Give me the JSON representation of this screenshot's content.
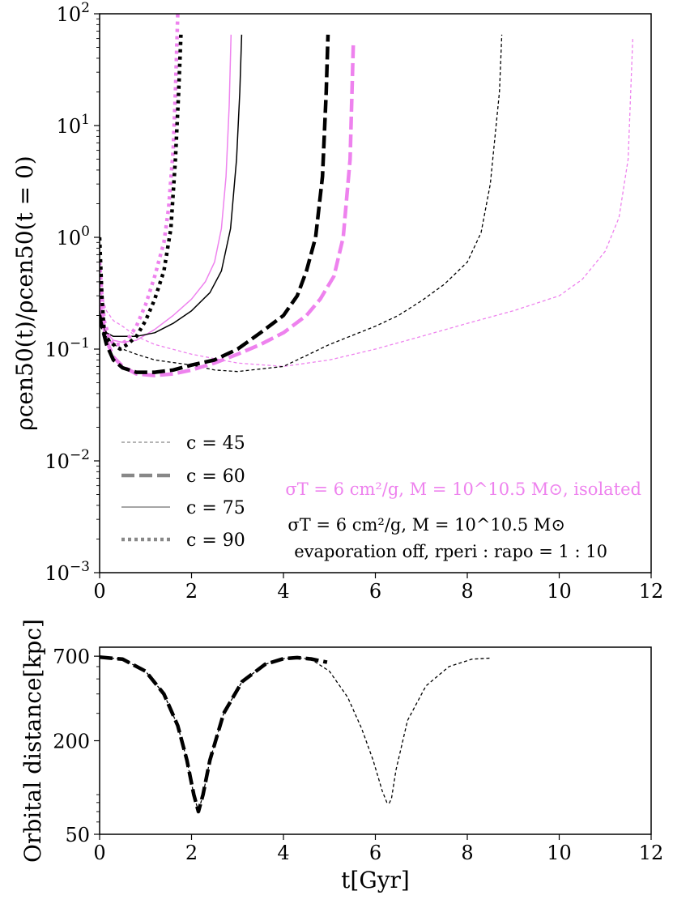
{
  "chart_data": [
    {
      "type": "line",
      "panel": "top",
      "xlabel": "",
      "ylabel": "ρcen50(t)/ρcen50(t = 0)",
      "yscale": "log",
      "xlim": [
        0,
        12
      ],
      "ylim": [
        0.001,
        100
      ],
      "x_ticks": [
        0,
        2,
        4,
        6,
        8,
        10,
        12
      ],
      "x_tick_labels": [
        "0",
        "2",
        "4",
        "6",
        "8",
        "10",
        "12"
      ],
      "y_ticks": [
        0.001,
        0.01,
        0.1,
        1,
        10,
        100
      ],
      "y_tick_labels": [
        {
          "base": "10",
          "exp": "−3"
        },
        {
          "base": "10",
          "exp": "−2"
        },
        {
          "base": "10",
          "exp": "−1"
        },
        {
          "base": "10",
          "exp": "0"
        },
        {
          "base": "10",
          "exp": "1"
        },
        {
          "base": "10",
          "exp": "2"
        }
      ],
      "legend": {
        "placement": "lower-left",
        "entries": [
          {
            "label": "c = 45",
            "style": "thin-dashed"
          },
          {
            "label": "c = 60",
            "style": "thick-dashed"
          },
          {
            "label": "c = 75",
            "style": "solid"
          },
          {
            "label": "c = 90",
            "style": "dotted"
          }
        ]
      },
      "annotations": [
        {
          "text": "σT = 6 cm²/g, M = 10^10.5 M⊙, isolated",
          "color": "#ee82ee"
        },
        {
          "text": "σT = 6 cm²/g, M = 10^10.5 M⊙",
          "color": "#000000"
        },
        {
          "text": "evaporation off, rperi : rapo = 1 : 10",
          "color": "#000000"
        }
      ],
      "series": [
        {
          "name": "c = 45, isolated",
          "color": "#ee82ee",
          "style": "thin-dashed",
          "x": [
            0,
            0.05,
            0.15,
            0.3,
            0.5,
            0.8,
            1.2,
            2,
            3,
            4,
            5,
            6,
            7,
            8,
            9,
            10,
            10.5,
            11,
            11.3,
            11.5,
            11.6
          ],
          "y": [
            0.35,
            0.3,
            0.22,
            0.18,
            0.16,
            0.13,
            0.11,
            0.09,
            0.075,
            0.07,
            0.08,
            0.1,
            0.13,
            0.17,
            0.22,
            0.3,
            0.42,
            0.75,
            1.5,
            5,
            60
          ]
        },
        {
          "name": "c = 45",
          "color": "#000000",
          "style": "thin-dashed",
          "x": [
            0,
            0.05,
            0.15,
            0.3,
            0.5,
            0.8,
            1.2,
            2,
            2.5,
            3,
            4,
            5,
            6,
            6.5,
            7,
            7.5,
            8,
            8.3,
            8.5,
            8.7,
            8.75
          ],
          "y": [
            0.18,
            0.15,
            0.13,
            0.11,
            0.1,
            0.09,
            0.08,
            0.072,
            0.065,
            0.063,
            0.07,
            0.11,
            0.16,
            0.2,
            0.27,
            0.38,
            0.6,
            1.1,
            3,
            20,
            65
          ]
        },
        {
          "name": "c = 60, isolated",
          "color": "#ee82ee",
          "style": "thick-dashed",
          "x": [
            0,
            0.05,
            0.15,
            0.3,
            0.5,
            0.8,
            1.2,
            1.6,
            2,
            2.5,
            3,
            3.5,
            4,
            4.5,
            4.8,
            5.1,
            5.3,
            5.45,
            5.52
          ],
          "y": [
            0.25,
            0.2,
            0.12,
            0.085,
            0.07,
            0.06,
            0.058,
            0.06,
            0.065,
            0.075,
            0.09,
            0.11,
            0.14,
            0.2,
            0.28,
            0.45,
            1.0,
            5,
            55
          ]
        },
        {
          "name": "c = 60",
          "color": "#000000",
          "style": "thick-dashed",
          "x": [
            0,
            0.05,
            0.15,
            0.3,
            0.5,
            0.8,
            1.2,
            1.6,
            2,
            2.5,
            3,
            3.5,
            4,
            4.3,
            4.5,
            4.7,
            4.85,
            4.93,
            4.97
          ],
          "y": [
            0.2,
            0.16,
            0.11,
            0.08,
            0.068,
            0.062,
            0.062,
            0.065,
            0.072,
            0.08,
            0.1,
            0.14,
            0.2,
            0.3,
            0.5,
            1.0,
            3.5,
            20,
            65
          ]
        },
        {
          "name": "c = 75, isolated",
          "color": "#ee82ee",
          "style": "solid",
          "x": [
            0,
            0.05,
            0.15,
            0.3,
            0.5,
            0.8,
            1.2,
            1.6,
            2,
            2.3,
            2.5,
            2.65,
            2.75,
            2.82,
            2.86
          ],
          "y": [
            0.3,
            0.22,
            0.14,
            0.12,
            0.115,
            0.12,
            0.15,
            0.2,
            0.28,
            0.4,
            0.6,
            1.2,
            3.5,
            15,
            65
          ]
        },
        {
          "name": "c = 75",
          "color": "#000000",
          "style": "solid",
          "x": [
            0,
            0.05,
            0.15,
            0.3,
            0.5,
            0.8,
            1.2,
            1.6,
            2,
            2.4,
            2.65,
            2.85,
            2.98,
            3.05,
            3.09
          ],
          "y": [
            0.22,
            0.17,
            0.14,
            0.13,
            0.13,
            0.13,
            0.14,
            0.17,
            0.22,
            0.32,
            0.5,
            1.2,
            5,
            20,
            65
          ]
        },
        {
          "name": "c = 90, isolated",
          "color": "#ee82ee",
          "style": "dotted",
          "x": [
            0,
            0.05,
            0.1,
            0.2,
            0.3,
            0.45,
            0.6,
            0.8,
            1.0,
            1.2,
            1.4,
            1.5,
            1.6,
            1.65,
            1.7
          ],
          "y": [
            0.6,
            0.3,
            0.18,
            0.13,
            0.11,
            0.11,
            0.12,
            0.16,
            0.25,
            0.45,
            0.9,
            1.8,
            6,
            20,
            100
          ]
        },
        {
          "name": "c = 90",
          "color": "#000000",
          "style": "dotted",
          "x": [
            0,
            0.05,
            0.1,
            0.2,
            0.3,
            0.45,
            0.6,
            0.8,
            1.0,
            1.2,
            1.4,
            1.55,
            1.65,
            1.72,
            1.77
          ],
          "y": [
            1.0,
            0.3,
            0.14,
            0.12,
            0.11,
            0.1,
            0.11,
            0.13,
            0.18,
            0.28,
            0.5,
            1.2,
            5,
            20,
            65
          ]
        }
      ]
    },
    {
      "type": "line",
      "panel": "bottom",
      "xlabel": "t[Gyr]",
      "ylabel": "Orbital distance[kpc]",
      "yscale": "log",
      "xlim": [
        0,
        12
      ],
      "ylim": [
        50,
        800
      ],
      "x_ticks": [
        0,
        2,
        4,
        6,
        8,
        10,
        12
      ],
      "x_tick_labels": [
        "0",
        "2",
        "4",
        "6",
        "8",
        "10",
        "12"
      ],
      "y_ticks": [
        50,
        200,
        700
      ],
      "y_tick_labels": [
        "50",
        "200",
        "700"
      ],
      "series": [
        {
          "name": "orbit (thin dashed)",
          "color": "#000000",
          "style": "thin-dashed",
          "x": [
            0,
            0.5,
            1,
            1.4,
            1.7,
            1.9,
            2.05,
            2.15,
            2.25,
            2.4,
            2.7,
            3.1,
            3.6,
            4,
            4.3,
            4.6,
            5,
            5.4,
            5.7,
            5.95,
            6.15,
            6.25,
            6.3,
            6.35,
            6.45,
            6.7,
            7.1,
            7.6,
            8.1,
            8.5
          ],
          "y": [
            690,
            670,
            560,
            400,
            250,
            150,
            90,
            70,
            90,
            150,
            300,
            480,
            620,
            675,
            685,
            670,
            560,
            380,
            240,
            150,
            95,
            80,
            79,
            85,
            130,
            270,
            450,
            600,
            670,
            680
          ]
        },
        {
          "name": "orbit (thick dashed)",
          "color": "#000000",
          "style": "thick-dashed",
          "x": [
            0,
            0.5,
            1,
            1.4,
            1.7,
            1.9,
            2.05,
            2.15,
            2.25,
            2.4,
            2.7,
            3.1,
            3.6,
            4,
            4.3,
            4.6,
            4.95
          ],
          "y": [
            690,
            670,
            560,
            400,
            250,
            150,
            90,
            70,
            90,
            150,
            300,
            480,
            620,
            675,
            685,
            672,
            640
          ]
        }
      ]
    }
  ]
}
